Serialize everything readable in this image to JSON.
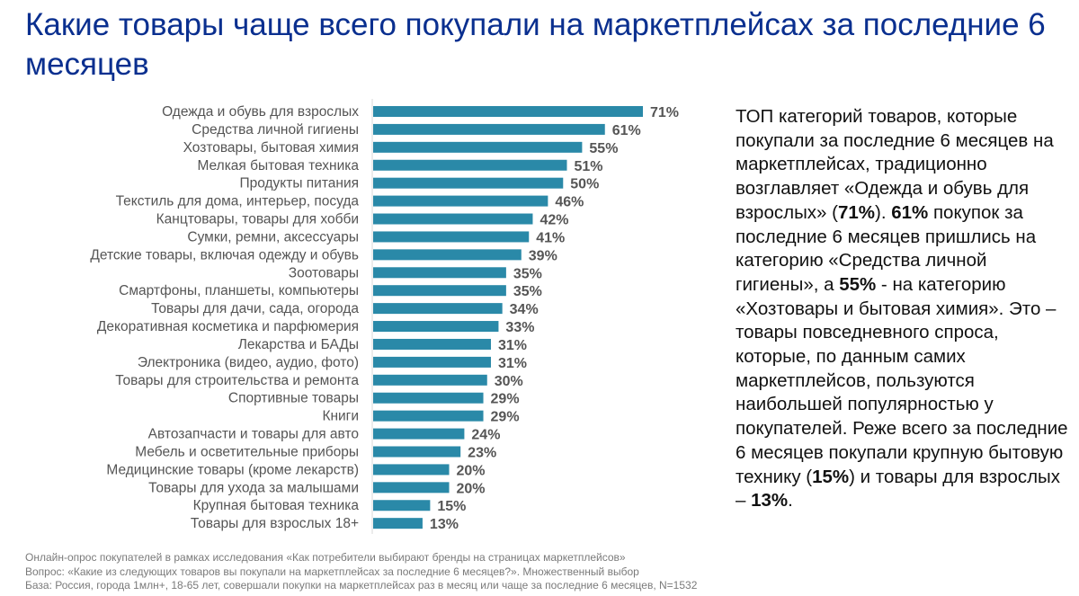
{
  "title": "Какие товары чаще всего покупали на маркетплейсах за последние 6 месяцев",
  "chart_data": {
    "type": "bar",
    "orientation": "horizontal",
    "bar_color": "#2a89a8",
    "value_suffix": "%",
    "xlim": [
      0,
      100
    ],
    "categories": [
      "Одежда и обувь для взрослых",
      "Средства личной гигиены",
      "Хозтовары, бытовая химия",
      "Мелкая бытовая техника",
      "Продукты питания",
      "Текстиль для дома, интерьер, посуда",
      "Канцтовары, товары для хобби",
      "Сумки, ремни, аксессуары",
      "Детские товары, включая одежду и обувь",
      "Зоотовары",
      "Смартфоны, планшеты, компьютеры",
      "Товары для дачи, сада, огорода",
      "Декоративная косметика и парфюмерия",
      "Лекарства и БАДы",
      "Электроника (видео, аудио, фото)",
      "Товары для строительства и ремонта",
      "Спортивные товары",
      "Книги",
      "Автозапчасти и товары для авто",
      "Мебель и осветительные приборы",
      "Медицинские товары (кроме лекарств)",
      "Товары для ухода за малышами",
      "Крупная бытовая техника",
      "Товары для взрослых 18+"
    ],
    "values": [
      71,
      61,
      55,
      51,
      50,
      46,
      42,
      41,
      39,
      35,
      35,
      34,
      33,
      31,
      31,
      30,
      29,
      29,
      24,
      23,
      20,
      20,
      15,
      13
    ]
  },
  "description": [
    {
      "t": "ТОП категорий товаров, которые покупали за последние 6 месяцев на маркетплейсах, традиционно возглавляет «Одежда и обувь для взрослых» ("
    },
    {
      "t": "71%",
      "b": true
    },
    {
      "t": "). "
    },
    {
      "t": "61%",
      "b": true
    },
    {
      "t": " покупок за последние 6 месяцев пришлись на категорию «Средства личной гигиены», а "
    },
    {
      "t": "55%",
      "b": true
    },
    {
      "t": " - на категорию «Хозтовары и бытовая химия». Это – товары повседневного спроса, которые, по данным самих маркетплейсов, пользуются наибольшей популярностью у покупателей. Реже всего за последние 6 месяцев покупали крупную бытовую технику ("
    },
    {
      "t": "15%",
      "b": true
    },
    {
      "t": ") и товары для взрослых – "
    },
    {
      "t": "13%",
      "b": true
    },
    {
      "t": "."
    }
  ],
  "notes": [
    "Онлайн-опрос покупателей в рамках исследования «Как потребители выбирают бренды на страницах маркетплейсов»",
    "Вопрос: «Какие из следующих товаров вы покупали на маркетплейсах за последние 6 месяцев?». Множественный выбор",
    "База: Россия, города 1млн+, 18-65 лет, совершали покупки на маркетплейсах раз в месяц или чаще за последние 6 месяцев, N=1532"
  ]
}
